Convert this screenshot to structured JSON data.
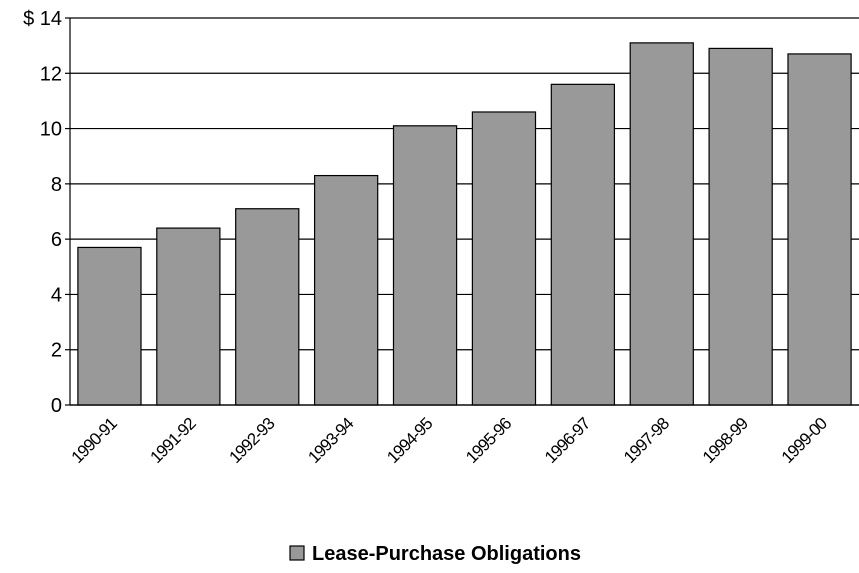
{
  "chart_data": {
    "type": "bar",
    "categories": [
      "1990-91",
      "1991-92",
      "1992-93",
      "1993-94",
      "1994-95",
      "1995-96",
      "1996-97",
      "1997-98",
      "1998-99",
      "1999-00"
    ],
    "series": [
      {
        "name": "Lease-Purchase Obligations",
        "color": "#999999",
        "values": [
          5.7,
          6.4,
          7.1,
          8.3,
          10.1,
          10.6,
          11.6,
          13.1,
          12.9,
          12.7
        ]
      }
    ],
    "ylim": [
      0,
      14
    ],
    "yticks": [
      0,
      2,
      4,
      6,
      8,
      10,
      12,
      {
        "value": 14,
        "label": "$ 14"
      }
    ],
    "grid": true,
    "legend": "bottom"
  }
}
